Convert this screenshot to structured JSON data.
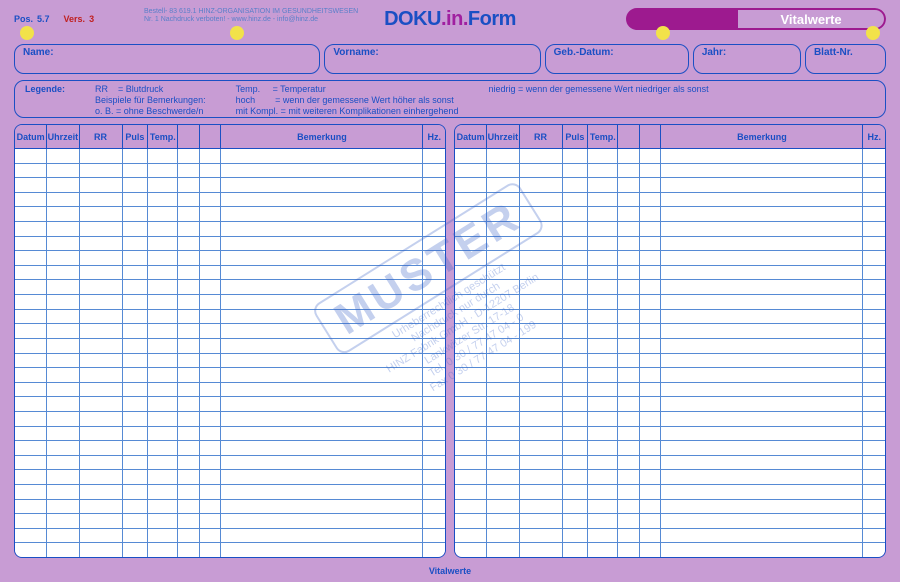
{
  "meta": {
    "pos_label": "Pos.",
    "pos_value": "5.7",
    "vers_label": "Vers.",
    "vers_value": "3",
    "fineprint_l1": "Bestell- 83 619.1  HINZ-ORGANISATION IM GESUNDHEITSWESEN",
    "fineprint_l2": "Nr. 1             Nachdruck verboten! - www.hinz.de - info@hinz.de"
  },
  "logo": {
    "part1": "DOKU",
    "part2": ".in.",
    "part3": "Form"
  },
  "title": "Vitalwerte",
  "fields": {
    "name": "Name:",
    "vorname": "Vorname:",
    "geb": "Geb.-Datum:",
    "jahr": "Jahr:",
    "blatt": "Blatt-Nr."
  },
  "legend": {
    "label": "Legende:",
    "col1": "RR    = Blutdruck\nBeispiele für Bemerkungen:\no. B. = ohne Beschwerde/n",
    "col2": "Temp.     = Temperatur\nhoch        = wenn der gemessene Wert höher als sonst\nmit Kompl. = mit weiteren Komplikationen einhergehend",
    "col3": "niedrig = wenn der gemessene Wert niedriger als sonst"
  },
  "table": {
    "columns": [
      "Datum",
      "Uhrzeit",
      "RR",
      "Puls",
      "Temp.",
      "",
      "",
      "Bemerkung",
      "Hz."
    ],
    "column_classes": [
      "c-datum",
      "c-uhrzeit",
      "c-rr",
      "c-puls",
      "c-temp",
      "c-sp1",
      "c-sp2",
      "c-bem",
      "c-hz"
    ],
    "row_count": 28,
    "header_bg": "#c89cd4",
    "body_bg": "#ffffff",
    "line_color": "#568ad4",
    "border_color": "#1a4fc4"
  },
  "footer": "Vitalwerte",
  "watermark": {
    "main": "MUSTER",
    "l1": "Urheberrechtlich geschützt",
    "l2": "Nachdruck nur durch",
    "l3": "HINZ Fabrik GmbH · D-12207 Berlin",
    "l4": "Lankwitzer Str. 17-18",
    "l5": "Tel. 0 30 / 77 47 04 - 0",
    "l6": "Fax 0 30 / 77 47 04 - 199"
  },
  "colors": {
    "page_bg": "#c89cd4",
    "blue": "#1a4fc4",
    "magenta": "#9d1a8f",
    "purple_text": "#a020a0",
    "hole": "#f2e24a",
    "red": "#c02020"
  }
}
